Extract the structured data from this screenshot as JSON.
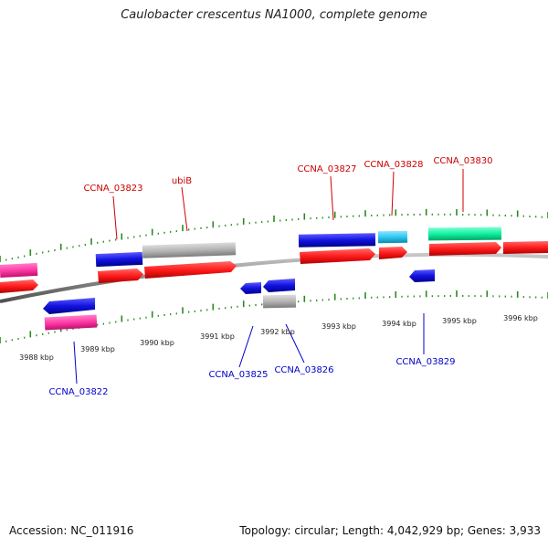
{
  "title": "Caulobacter crescentus NA1000, complete genome",
  "footer": {
    "accession": "Accession: NC_011916",
    "summary": "Topology: circular; Length: 4,042,929 bp; Genes: 3,933"
  },
  "colors": {
    "backbone": "#8c8c8c",
    "tick": "#2a8a1e",
    "forward_label": "#cc0000",
    "reverse_label": "#0000cc"
  },
  "scale_labels": [
    "3988 kbp",
    "3989 kbp",
    "3990 kbp",
    "3991 kbp",
    "3992 kbp",
    "3993 kbp",
    "3994 kbp",
    "3995 kbp",
    "3996 kbp"
  ],
  "gene_labels": {
    "forward": [
      "CCNA_03823",
      "ubiB",
      "CCNA_03827",
      "CCNA_03828",
      "CCNA_03830"
    ],
    "reverse": [
      "CCNA_03822",
      "CCNA_03825",
      "CCNA_03826",
      "CCNA_03829"
    ]
  },
  "feature_colors": [
    "#ff3aa6",
    "#ff1b1b",
    "#1212e0",
    "#b4b4b4",
    "#30c8f0",
    "#12f0a0"
  ]
}
